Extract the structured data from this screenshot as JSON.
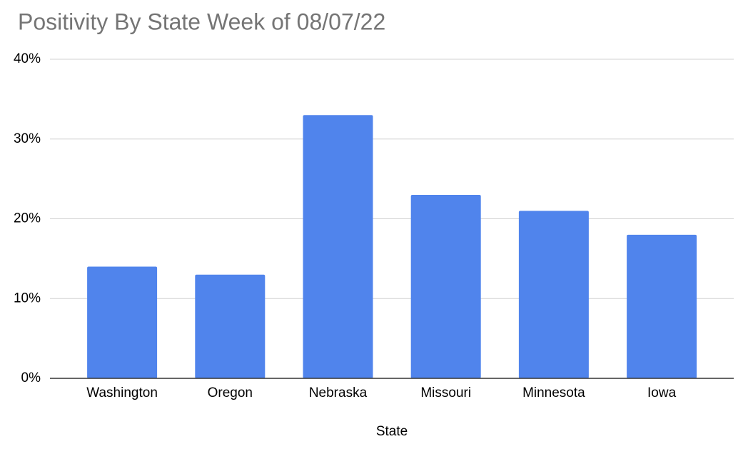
{
  "chart_data": {
    "type": "bar",
    "title": "Positivity By State Week of 08/07/22",
    "x_label": "State",
    "categories": [
      "Washington",
      "Oregon",
      "Nebraska",
      "Missouri",
      "Minnesota",
      "Iowa"
    ],
    "values": [
      14,
      13,
      33,
      23,
      21,
      18
    ],
    "color": "#5084ec",
    "ylim": [
      0,
      40
    ],
    "yticks": [
      {
        "value": 0,
        "label": "0%"
      },
      {
        "value": 10,
        "label": "10%"
      },
      {
        "value": 20,
        "label": "20%"
      },
      {
        "value": 30,
        "label": "30%"
      },
      {
        "value": 40,
        "label": "40%"
      }
    ],
    "grid": true
  }
}
